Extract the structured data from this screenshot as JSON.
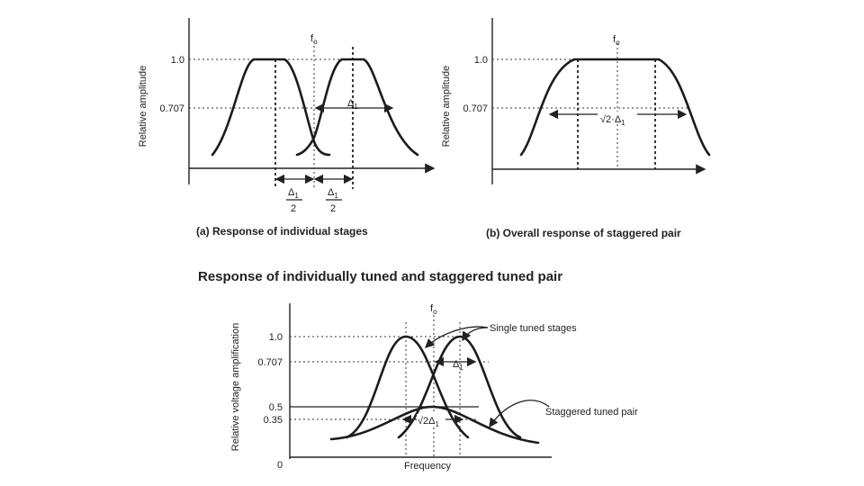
{
  "panel_a": {
    "ylabel": "Relative amplitude",
    "tick_top": "1.0",
    "tick_mid": "0.707",
    "fo": "f",
    "fo_sub": "o",
    "delta": "Δ",
    "delta_sub": "1",
    "half_num": "Δ",
    "half_num_sub": "1",
    "half_den": "2",
    "caption": "(a) Response of individual stages"
  },
  "panel_b": {
    "ylabel": "Relative amplitude",
    "tick_top": "1.0",
    "tick_mid": "0.707",
    "fo": "f",
    "fo_sub": "o",
    "bw": "√2·Δ",
    "bw_sub": "1",
    "caption": "(b) Overall response of staggered pair"
  },
  "title": "Response of individually tuned and staggered tuned pair",
  "panel_c": {
    "ylabel": "Relative voltage amplification",
    "ticks": [
      "1.0",
      "0.707",
      "0.5",
      "0.35"
    ],
    "zero": "0",
    "xlabel": "Frequency",
    "fo": "f",
    "fo_sub": "o",
    "delta": "Δ",
    "delta_sub": "1",
    "bw": "√2Δ",
    "bw_sub": "1",
    "label_single": "Single tuned stages",
    "label_pair": "Staggered tuned pair"
  }
}
